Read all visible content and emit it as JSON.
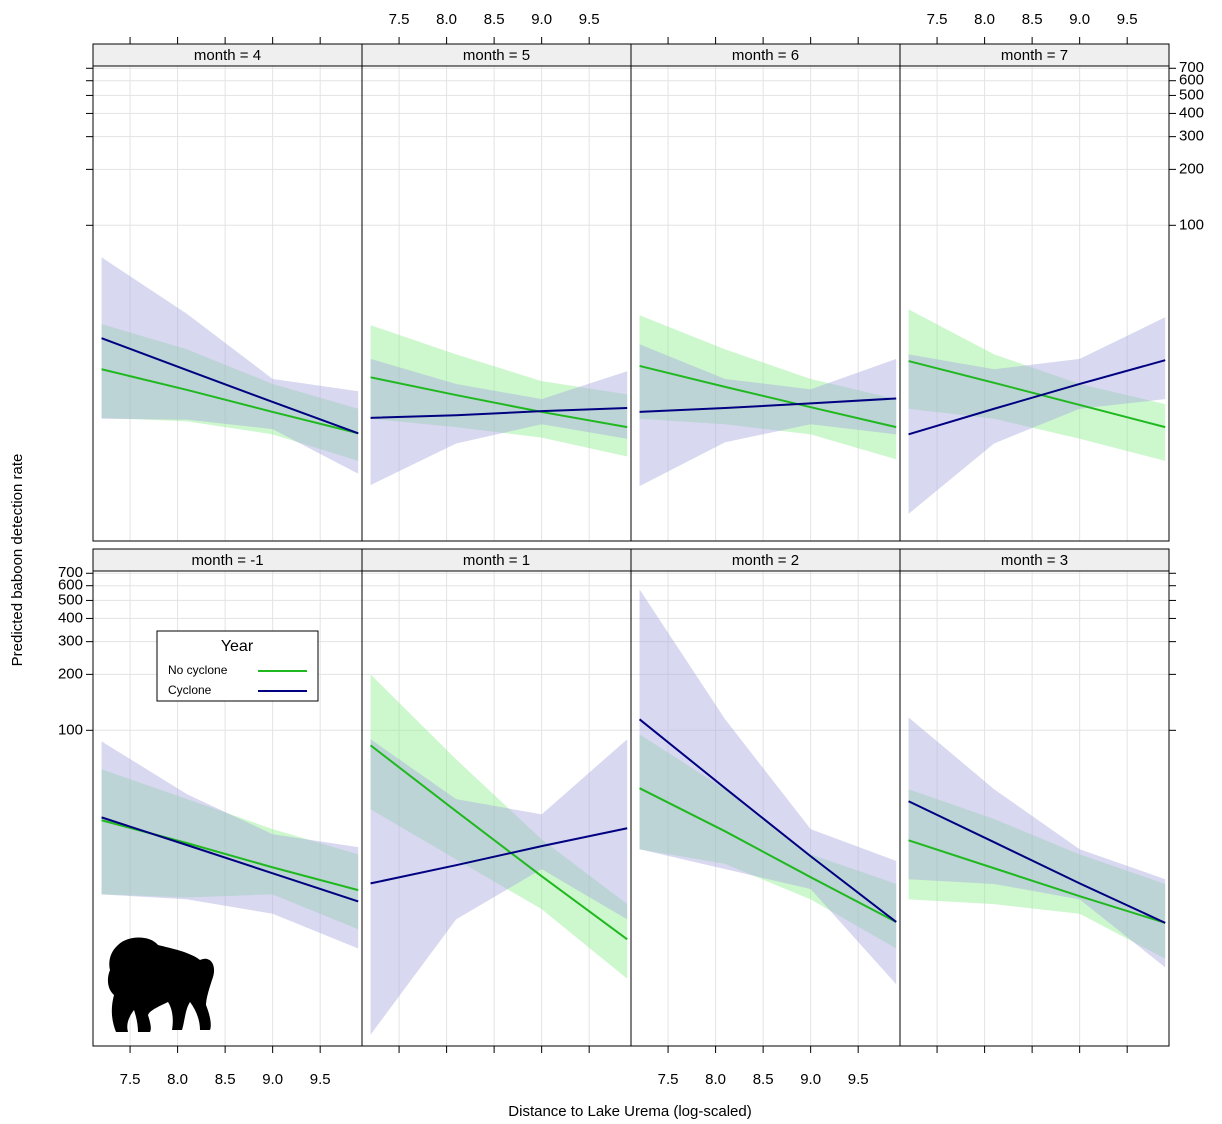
{
  "chart_data": {
    "type": "line",
    "x_label": "Distance to Lake Urema (log-scaled)",
    "y_label": "Predicted baboon detection rate",
    "xlim": [
      7.11,
      9.94
    ],
    "ylim": [
      2,
      720
    ],
    "log_y": true,
    "grid": true,
    "xticks": [
      7.5,
      {
        "value": 8,
        "label": "8.0"
      },
      8.5,
      {
        "value": 9,
        "label": "9.0"
      },
      9.5
    ],
    "yticks": [
      100,
      200,
      300,
      400,
      500,
      600,
      700
    ],
    "x": [
      7.2,
      8.1,
      9.0,
      9.9
    ],
    "legend": {
      "title": "Year",
      "position": "top-left",
      "series": [
        {
          "name": "No cyclone",
          "color": "#1fb81f",
          "band_color": "#90ee90"
        },
        {
          "name": "Cyclone",
          "color": "#000080",
          "band_color": "#a8a8e0"
        }
      ]
    },
    "panels": [
      {
        "strip": "month = 4",
        "series": [
          {
            "values": [
              16.8,
              13.0,
              9.9,
              7.6
            ],
            "lower": [
              9.2,
              8.8,
              7.5,
              5.4
            ],
            "upper": [
              29.4,
              21.5,
              14.0,
              10.3
            ]
          },
          {
            "values": [
              24.7,
              16.6,
              11.2,
              7.6
            ],
            "lower": [
              9.1,
              9.0,
              8.0,
              4.6
            ],
            "upper": [
              67.3,
              33.3,
              14.9,
              12.8
            ]
          }
        ]
      },
      {
        "strip": "month = 5",
        "series": [
          {
            "values": [
              15.2,
              12.2,
              9.9,
              8.2
            ],
            "lower": [
              9.1,
              8.2,
              7.2,
              5.7
            ],
            "upper": [
              29.0,
              20.2,
              14.5,
              12.3
            ]
          },
          {
            "values": [
              9.2,
              9.5,
              10.0,
              10.4
            ],
            "lower": [
              4.0,
              6.7,
              8.5,
              7.1
            ],
            "upper": [
              19.1,
              14.0,
              11.6,
              16.4
            ]
          }
        ]
      },
      {
        "strip": "month = 6",
        "series": [
          {
            "values": [
              17.5,
              13.5,
              10.5,
              8.2
            ],
            "lower": [
              9.1,
              8.5,
              7.5,
              5.5
            ],
            "upper": [
              32.8,
              21.5,
              14.9,
              11.6
            ]
          },
          {
            "values": [
              9.9,
              10.4,
              11.0,
              11.7
            ],
            "lower": [
              3.95,
              6.8,
              8.5,
              7.5
            ],
            "upper": [
              22.9,
              14.9,
              13.1,
              19.1
            ]
          }
        ]
      },
      {
        "strip": "month = 7",
        "series": [
          {
            "values": [
              18.6,
              14.2,
              10.8,
              8.2
            ],
            "lower": [
              10.3,
              9.1,
              7.1,
              5.4
            ],
            "upper": [
              35.3,
              20.2,
              14.0,
              10.9
            ]
          },
          {
            "values": [
              7.5,
              10.3,
              14.0,
              18.8
            ],
            "lower": [
              2.8,
              6.7,
              10.3,
              11.6
            ],
            "upper": [
              20.2,
              16.8,
              19.1,
              32.0
            ]
          }
        ]
      },
      {
        "strip": "month = -1",
        "series": [
          {
            "values": [
              32.8,
              24.7,
              18.3,
              13.8
            ],
            "lower": [
              13.1,
              12.6,
              13.1,
              8.5
            ],
            "upper": [
              61.7,
              42.6,
              29.4,
              21.5
            ]
          },
          {
            "values": [
              34.0,
              24.1,
              17.0,
              12.0
            ],
            "lower": [
              13.1,
              12.3,
              10.3,
              6.7
            ],
            "upper": [
              87.2,
              45.3,
              27.6,
              23.5
            ]
          }
        ]
      },
      {
        "strip": "month = 1",
        "series": [
          {
            "values": [
              83.0,
              36.7,
              16.4,
              7.5
            ],
            "lower": [
              37.6,
              20.2,
              10.9,
              4.6
            ],
            "upper": [
              200,
              69.8,
              25.9,
              11.6
            ]
          },
          {
            "values": [
              15.0,
              18.8,
              23.8,
              29.7
            ],
            "lower": [
              2.3,
              9.6,
              17.9,
              9.6
            ],
            "upper": [
              89.5,
              42.6,
              35.3,
              89.5
            ]
          }
        ]
      },
      {
        "strip": "month = 2",
        "series": [
          {
            "values": [
              48.8,
              28.6,
              16.2,
              9.3
            ],
            "lower": [
              22.9,
              19.1,
              12.3,
              6.7
            ],
            "upper": [
              95.1,
              48.2,
              21.5,
              14.9
            ]
          },
          {
            "values": [
              114.6,
              48.8,
              21.0,
              9.3
            ],
            "lower": [
              22.9,
              17.9,
              14.0,
              4.3
            ],
            "upper": [
              573,
              114.6,
              29.4,
              19.8
            ]
          }
        ]
      },
      {
        "strip": "month = 3",
        "series": [
          {
            "values": [
              25.6,
              18.1,
              12.8,
              9.2
            ],
            "lower": [
              12.3,
              11.6,
              10.3,
              5.9
            ],
            "upper": [
              48.2,
              33.3,
              21.5,
              14.9
            ]
          },
          {
            "values": [
              41.5,
              25.0,
              15.0,
              9.2
            ],
            "lower": [
              15.8,
              14.9,
              12.3,
              5.3
            ],
            "upper": [
              117.4,
              48.2,
              22.9,
              15.8
            ]
          }
        ]
      }
    ]
  }
}
